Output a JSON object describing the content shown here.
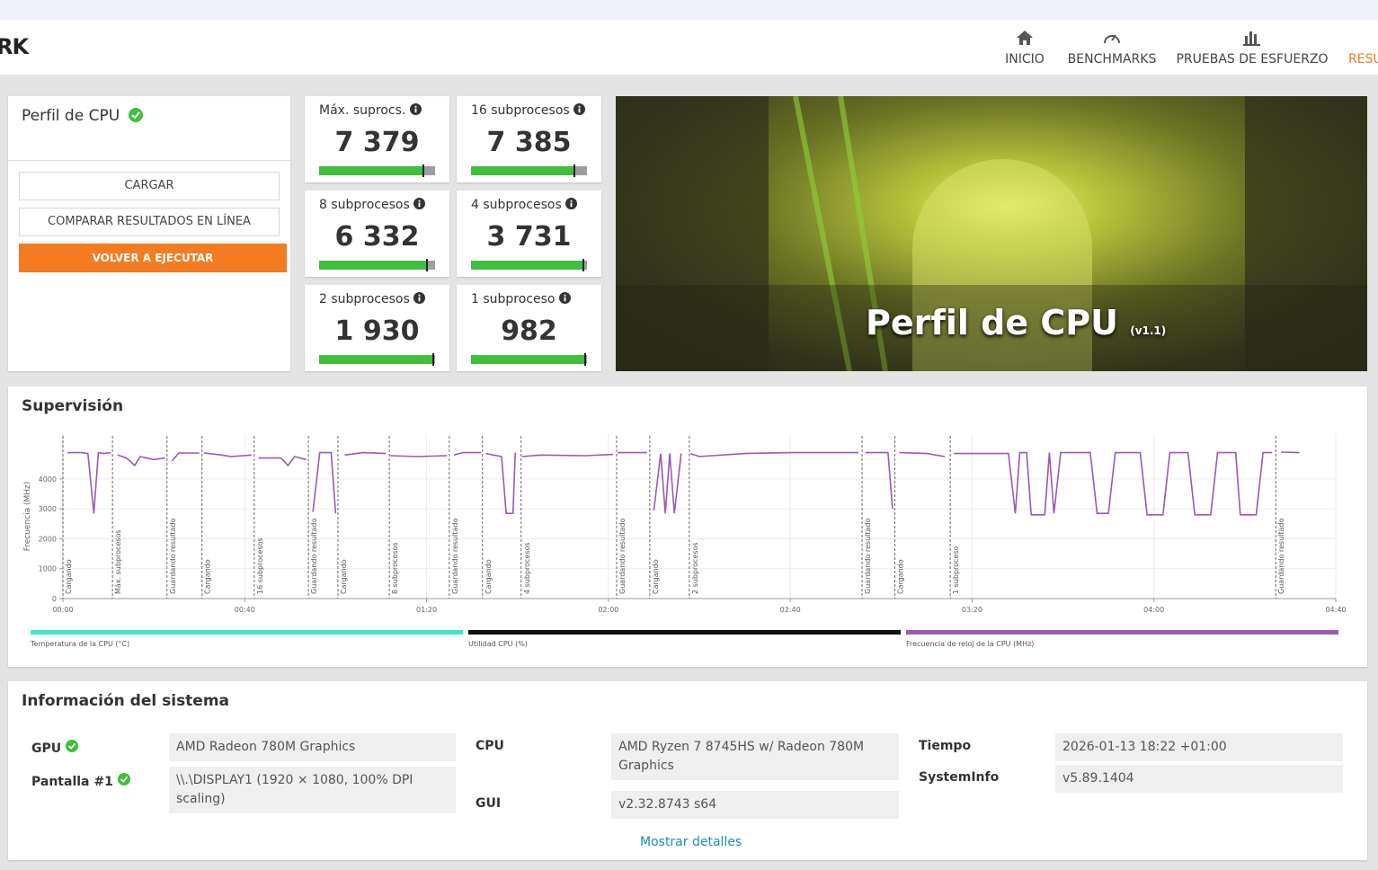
{
  "header": {
    "brand": "RK",
    "nav": [
      "INICIO",
      "BENCHMARKS",
      "PRUEBAS DE ESFUERZO",
      "RESU"
    ]
  },
  "profile": {
    "title": "Perfil de CPU",
    "buttons": [
      "CARGAR",
      "COMPARAR RESULTADOS EN LÍNEA",
      "VOLVER A EJECUTAR"
    ]
  },
  "scores": [
    {
      "label": "Máx. suprocs.",
      "value": "7 379"
    },
    {
      "label": "16 subprocesos",
      "value": "7 385"
    },
    {
      "label": "8 subprocesos",
      "value": "6 332"
    },
    {
      "label": "4 subprocesos",
      "value": "3 731"
    },
    {
      "label": "2 subprocesos",
      "value": "1 930"
    },
    {
      "label": "1 subproceso",
      "value": "982"
    }
  ],
  "hero": {
    "title": "Perfil de CPU",
    "version": "(v1.1)"
  },
  "monitoring": {
    "title": "Supervisión",
    "chart": {
      "type": "line",
      "ylabel": "Frecuencia (MHz)",
      "ylim": [
        0,
        5500
      ],
      "yticks": [
        0,
        1000,
        2000,
        3000,
        4000
      ],
      "xlim": [
        0,
        280
      ],
      "xticks": [
        {
          "value": 0,
          "label": "00:00"
        },
        {
          "value": 40,
          "label": "00:40"
        },
        {
          "value": 80,
          "label": "01:20"
        },
        {
          "value": 120,
          "label": "02:00"
        },
        {
          "value": 160,
          "label": "02:40"
        },
        {
          "value": 200,
          "label": "03:20"
        },
        {
          "value": 240,
          "label": "04:00"
        },
        {
          "value": 280,
          "label": "04:40"
        }
      ],
      "grid": true,
      "color": "#9b59b6",
      "markers": [
        {
          "x": 0,
          "label": "Cargando"
        },
        {
          "x": 10.9,
          "label": "Máx. subprocesos"
        },
        {
          "x": 22.9,
          "label": "Guardando resultado"
        },
        {
          "x": 30.6,
          "label": "Cargando"
        },
        {
          "x": 42.1,
          "label": "16 subprocesos"
        },
        {
          "x": 54,
          "label": "Guardando resultado"
        },
        {
          "x": 60.5,
          "label": "Cargando"
        },
        {
          "x": 71.8,
          "label": "8 subprocesos"
        },
        {
          "x": 85,
          "label": "Guardando resultado"
        },
        {
          "x": 92.3,
          "label": "Cargando"
        },
        {
          "x": 100.8,
          "label": "4 subprocesos"
        },
        {
          "x": 121.8,
          "label": "Guardando resultado"
        },
        {
          "x": 129.1,
          "label": "Cargando"
        },
        {
          "x": 137.8,
          "label": "2 subprocesos"
        },
        {
          "x": 175.8,
          "label": "Guardando resultado"
        },
        {
          "x": 183,
          "label": "Cargando"
        },
        {
          "x": 195.2,
          "label": "1 subproceso"
        },
        {
          "x": 266.8,
          "label": "Guardando resultado"
        }
      ],
      "x": [
        1,
        4,
        5.5,
        6.8,
        7.8,
        9,
        10.5,
        11,
        12,
        14,
        15.8,
        17,
        20,
        22.5,
        23,
        24,
        25.5,
        30,
        30.6,
        31,
        35,
        37,
        41.5,
        42.1,
        43,
        48,
        49.5,
        51,
        53.5,
        54,
        55,
        56.5,
        59,
        60,
        60.5,
        62,
        66,
        71,
        71.8,
        72,
        78,
        84.5,
        85,
        86,
        88,
        92,
        92.3,
        93,
        96.5,
        97.5,
        99,
        99.5,
        100.8,
        101,
        105,
        115,
        121,
        121.8,
        122,
        128.5,
        129.1,
        130,
        131.5,
        132.5,
        133.5,
        134.5,
        136,
        137.8,
        138,
        140,
        150,
        160,
        175,
        175.8,
        176.5,
        181.5,
        182.5,
        183,
        184,
        190,
        194,
        195.2,
        196,
        208,
        209.5,
        210.5,
        212,
        213,
        216,
        217,
        218,
        219.5,
        226,
        227.5,
        230,
        231.5,
        237,
        238.5,
        242,
        243.5,
        247.5,
        249,
        252.5,
        254,
        258,
        259,
        262.5,
        264,
        266,
        266.8,
        268,
        272
      ],
      "values": [
        4880,
        4880,
        4850,
        2850,
        4880,
        4850,
        4880,
        null,
        4800,
        4700,
        4450,
        4750,
        4650,
        4700,
        null,
        4600,
        4870,
        4870,
        null,
        4870,
        4800,
        4750,
        4800,
        null,
        4700,
        4700,
        4450,
        4750,
        4650,
        null,
        2900,
        4880,
        4880,
        2850,
        null,
        4800,
        4880,
        4850,
        null,
        4780,
        4750,
        4780,
        null,
        4800,
        4880,
        4880,
        null,
        4850,
        4750,
        2850,
        2850,
        4880,
        null,
        4750,
        4800,
        4780,
        4820,
        null,
        4880,
        4880,
        null,
        2950,
        4850,
        2850,
        4850,
        2850,
        4850,
        null,
        4850,
        4750,
        4850,
        4880,
        4880,
        null,
        4880,
        4880,
        3000,
        null,
        4880,
        4850,
        4750,
        null,
        4850,
        4850,
        2850,
        4880,
        4880,
        2800,
        2800,
        4880,
        2850,
        4880,
        4880,
        2850,
        2850,
        4880,
        4880,
        2800,
        2800,
        4880,
        4880,
        2800,
        2800,
        4880,
        4880,
        2800,
        2800,
        4880,
        4880,
        null,
        4900,
        4880
      ],
      "legend": [
        {
          "name": "Temperatura de la CPU (°C)",
          "color": "#3de8c4"
        },
        {
          "name": "Utilidad CPU (%)",
          "color": "#111111"
        },
        {
          "name": "Frecuencia de reloj de la CPU (MHz)",
          "color": "#9b59b6"
        }
      ]
    }
  },
  "system_info": {
    "title": "Información del sistema",
    "rows": [
      {
        "label": "GPU",
        "value": "AMD Radeon 780M Graphics"
      },
      {
        "label": "Pantalla #1",
        "value": "\\\\.\\DISPLAY1 (1920 × 1080, 100% DPI scaling)"
      },
      {
        "label": "CPU",
        "value": "AMD Ryzen 7 8745HS w/ Radeon 780M Graphics"
      },
      {
        "label": "GUI",
        "value": "v2.32.8743 s64"
      },
      {
        "label": "Tiempo",
        "value": "2026-01-13 18:22 +01:00"
      },
      {
        "label": "SystemInfo",
        "value": "v5.89.1404"
      }
    ],
    "link": "Mostrar detalles"
  }
}
